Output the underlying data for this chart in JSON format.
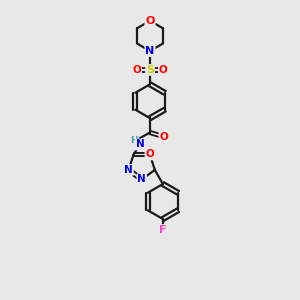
{
  "bg_color": "#e8e8e8",
  "bond_color": "#1a1a1a",
  "colors": {
    "N": "#0000ee",
    "O": "#ff0000",
    "S": "#cccc00",
    "F": "#ff44cc",
    "C": "#1a1a1a",
    "H": "#4a9a9a"
  },
  "figsize": [
    3.0,
    3.0
  ],
  "dpi": 100
}
